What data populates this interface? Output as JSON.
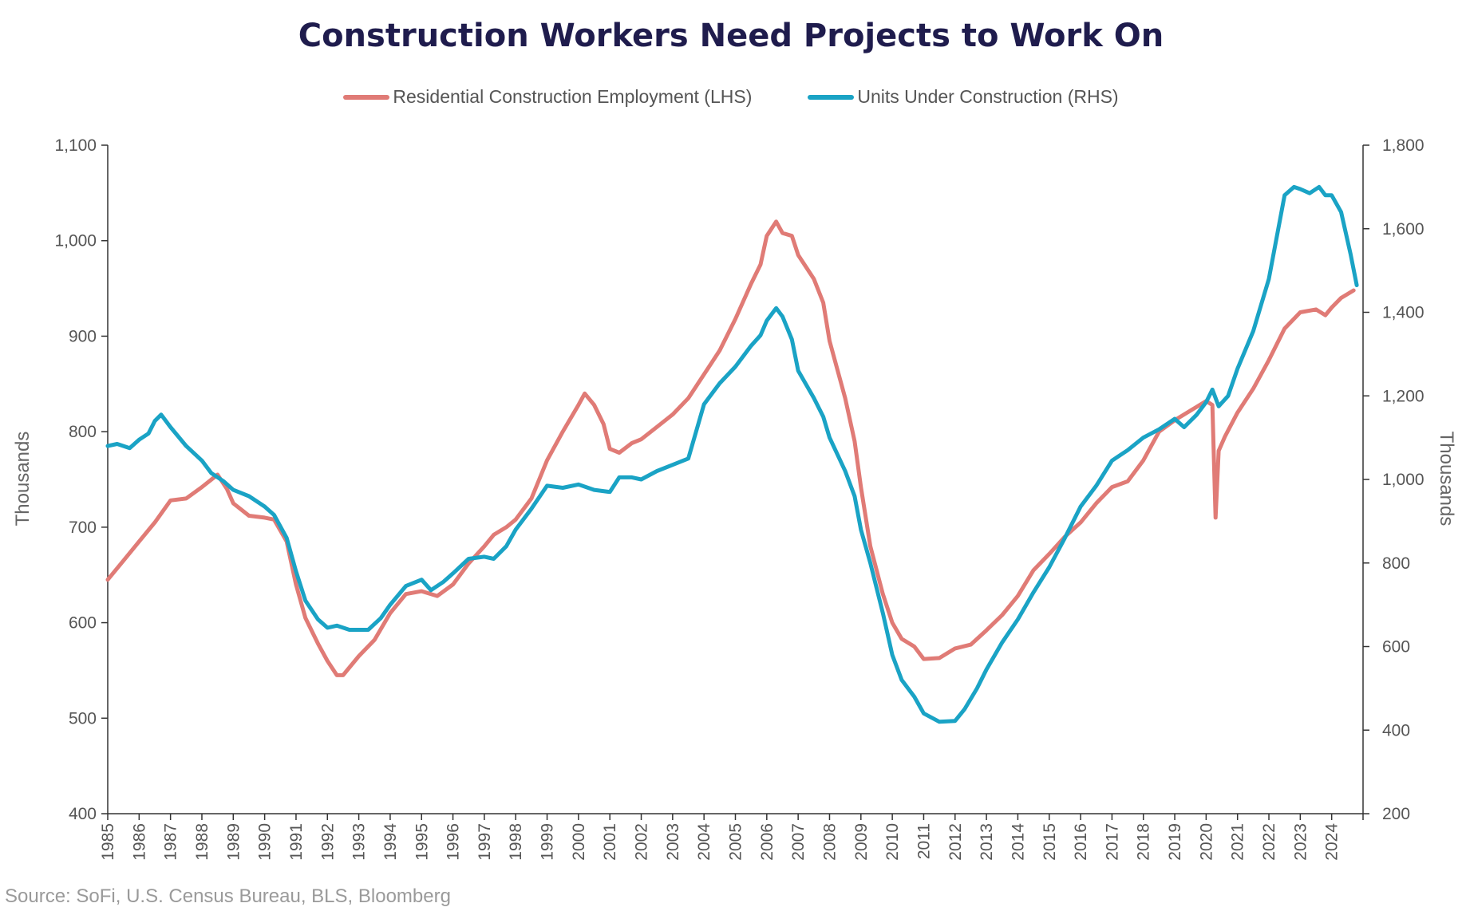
{
  "chart_data": {
    "type": "line",
    "title": "Construction Workers Need Projects to Work On",
    "source": "Source: SoFi, U.S. Census Bureau, BLS, Bloomberg",
    "y_left": {
      "label": "Thousands",
      "range": [
        400,
        1100
      ],
      "ticks": [
        "400",
        "500",
        "600",
        "700",
        "800",
        "900",
        "1,000",
        "1,100"
      ]
    },
    "y_right": {
      "label": "Thousands",
      "range": [
        200,
        1800
      ],
      "ticks": [
        "200",
        "400",
        "600",
        "800",
        "1,000",
        "1,200",
        "1,400",
        "1,600",
        "1,800"
      ]
    },
    "x": {
      "range": [
        1985,
        2025
      ],
      "ticks": [
        "1985",
        "1986",
        "1987",
        "1988",
        "1989",
        "1990",
        "1991",
        "1992",
        "1993",
        "1994",
        "1995",
        "1996",
        "1997",
        "1998",
        "1999",
        "2000",
        "2001",
        "2002",
        "2003",
        "2004",
        "2005",
        "2006",
        "2007",
        "2008",
        "2009",
        "2010",
        "2011",
        "2012",
        "2013",
        "2014",
        "2015",
        "2016",
        "2017",
        "2018",
        "2019",
        "2020",
        "2021",
        "2022",
        "2023",
        "2024"
      ]
    },
    "grid": false,
    "legend_position": "top-center",
    "series": [
      {
        "name": "Residential Construction Employment (LHS)",
        "axis": "left",
        "color": "#e07b76",
        "points": [
          [
            1985.0,
            645
          ],
          [
            1985.5,
            665
          ],
          [
            1986.0,
            685
          ],
          [
            1986.5,
            705
          ],
          [
            1987.0,
            728
          ],
          [
            1987.5,
            730
          ],
          [
            1988.0,
            742
          ],
          [
            1988.5,
            755
          ],
          [
            1988.8,
            740
          ],
          [
            1989.0,
            725
          ],
          [
            1989.5,
            712
          ],
          [
            1990.0,
            710
          ],
          [
            1990.3,
            708
          ],
          [
            1990.7,
            685
          ],
          [
            1991.0,
            640
          ],
          [
            1991.3,
            605
          ],
          [
            1991.7,
            578
          ],
          [
            1992.0,
            560
          ],
          [
            1992.3,
            545
          ],
          [
            1992.5,
            545
          ],
          [
            1993.0,
            565
          ],
          [
            1993.5,
            582
          ],
          [
            1994.0,
            610
          ],
          [
            1994.5,
            630
          ],
          [
            1995.0,
            633
          ],
          [
            1995.5,
            628
          ],
          [
            1996.0,
            640
          ],
          [
            1996.5,
            662
          ],
          [
            1997.0,
            680
          ],
          [
            1997.3,
            692
          ],
          [
            1997.7,
            700
          ],
          [
            1998.0,
            708
          ],
          [
            1998.5,
            730
          ],
          [
            1999.0,
            770
          ],
          [
            1999.5,
            800
          ],
          [
            2000.0,
            828
          ],
          [
            2000.2,
            840
          ],
          [
            2000.5,
            828
          ],
          [
            2000.8,
            808
          ],
          [
            2001.0,
            782
          ],
          [
            2001.3,
            778
          ],
          [
            2001.7,
            788
          ],
          [
            2002.0,
            792
          ],
          [
            2002.5,
            805
          ],
          [
            2003.0,
            818
          ],
          [
            2003.5,
            835
          ],
          [
            2004.0,
            860
          ],
          [
            2004.5,
            885
          ],
          [
            2005.0,
            918
          ],
          [
            2005.5,
            955
          ],
          [
            2005.8,
            975
          ],
          [
            2006.0,
            1005
          ],
          [
            2006.3,
            1020
          ],
          [
            2006.5,
            1008
          ],
          [
            2006.8,
            1005
          ],
          [
            2007.0,
            985
          ],
          [
            2007.5,
            960
          ],
          [
            2007.8,
            935
          ],
          [
            2008.0,
            895
          ],
          [
            2008.5,
            835
          ],
          [
            2008.8,
            790
          ],
          [
            2009.0,
            742
          ],
          [
            2009.3,
            680
          ],
          [
            2009.7,
            630
          ],
          [
            2010.0,
            600
          ],
          [
            2010.3,
            583
          ],
          [
            2010.7,
            575
          ],
          [
            2011.0,
            562
          ],
          [
            2011.5,
            563
          ],
          [
            2012.0,
            573
          ],
          [
            2012.5,
            577
          ],
          [
            2013.0,
            592
          ],
          [
            2013.5,
            608
          ],
          [
            2014.0,
            628
          ],
          [
            2014.5,
            655
          ],
          [
            2015.0,
            672
          ],
          [
            2015.5,
            690
          ],
          [
            2016.0,
            705
          ],
          [
            2016.5,
            725
          ],
          [
            2017.0,
            742
          ],
          [
            2017.5,
            748
          ],
          [
            2018.0,
            770
          ],
          [
            2018.5,
            800
          ],
          [
            2019.0,
            812
          ],
          [
            2019.5,
            822
          ],
          [
            2020.0,
            832
          ],
          [
            2020.2,
            828
          ],
          [
            2020.3,
            710
          ],
          [
            2020.4,
            780
          ],
          [
            2020.6,
            795
          ],
          [
            2021.0,
            820
          ],
          [
            2021.5,
            845
          ],
          [
            2022.0,
            875
          ],
          [
            2022.5,
            908
          ],
          [
            2023.0,
            925
          ],
          [
            2023.5,
            928
          ],
          [
            2023.8,
            922
          ],
          [
            2024.0,
            930
          ],
          [
            2024.3,
            940
          ],
          [
            2024.7,
            948
          ]
        ]
      },
      {
        "name": "Units Under Construction (RHS)",
        "axis": "right",
        "color": "#1aa3c5",
        "points": [
          [
            1985.0,
            1080
          ],
          [
            1985.3,
            1085
          ],
          [
            1985.7,
            1075
          ],
          [
            1986.0,
            1095
          ],
          [
            1986.3,
            1110
          ],
          [
            1986.5,
            1140
          ],
          [
            1986.7,
            1155
          ],
          [
            1987.0,
            1125
          ],
          [
            1987.5,
            1080
          ],
          [
            1988.0,
            1045
          ],
          [
            1988.3,
            1015
          ],
          [
            1988.7,
            995
          ],
          [
            1989.0,
            975
          ],
          [
            1989.5,
            960
          ],
          [
            1990.0,
            935
          ],
          [
            1990.3,
            915
          ],
          [
            1990.7,
            860
          ],
          [
            1991.0,
            780
          ],
          [
            1991.3,
            710
          ],
          [
            1991.7,
            665
          ],
          [
            1992.0,
            645
          ],
          [
            1992.3,
            650
          ],
          [
            1992.7,
            640
          ],
          [
            1993.0,
            640
          ],
          [
            1993.3,
            640
          ],
          [
            1993.7,
            668
          ],
          [
            1994.0,
            700
          ],
          [
            1994.5,
            745
          ],
          [
            1995.0,
            760
          ],
          [
            1995.3,
            735
          ],
          [
            1995.7,
            755
          ],
          [
            1996.0,
            775
          ],
          [
            1996.5,
            810
          ],
          [
            1997.0,
            815
          ],
          [
            1997.3,
            810
          ],
          [
            1997.7,
            840
          ],
          [
            1998.0,
            880
          ],
          [
            1998.5,
            930
          ],
          [
            1999.0,
            985
          ],
          [
            1999.5,
            980
          ],
          [
            2000.0,
            988
          ],
          [
            2000.5,
            975
          ],
          [
            2001.0,
            970
          ],
          [
            2001.3,
            1005
          ],
          [
            2001.7,
            1005
          ],
          [
            2002.0,
            1000
          ],
          [
            2002.5,
            1020
          ],
          [
            2003.0,
            1035
          ],
          [
            2003.5,
            1050
          ],
          [
            2004.0,
            1180
          ],
          [
            2004.5,
            1230
          ],
          [
            2005.0,
            1270
          ],
          [
            2005.5,
            1320
          ],
          [
            2005.8,
            1345
          ],
          [
            2006.0,
            1380
          ],
          [
            2006.3,
            1410
          ],
          [
            2006.5,
            1390
          ],
          [
            2006.8,
            1335
          ],
          [
            2007.0,
            1260
          ],
          [
            2007.5,
            1195
          ],
          [
            2007.8,
            1150
          ],
          [
            2008.0,
            1100
          ],
          [
            2008.5,
            1020
          ],
          [
            2008.8,
            960
          ],
          [
            2009.0,
            880
          ],
          [
            2009.3,
            800
          ],
          [
            2009.7,
            680
          ],
          [
            2010.0,
            580
          ],
          [
            2010.3,
            520
          ],
          [
            2010.7,
            480
          ],
          [
            2011.0,
            440
          ],
          [
            2011.5,
            420
          ],
          [
            2012.0,
            422
          ],
          [
            2012.3,
            450
          ],
          [
            2012.7,
            500
          ],
          [
            2013.0,
            545
          ],
          [
            2013.5,
            610
          ],
          [
            2014.0,
            665
          ],
          [
            2014.5,
            730
          ],
          [
            2015.0,
            790
          ],
          [
            2015.5,
            860
          ],
          [
            2016.0,
            935
          ],
          [
            2016.5,
            985
          ],
          [
            2017.0,
            1045
          ],
          [
            2017.5,
            1070
          ],
          [
            2018.0,
            1100
          ],
          [
            2018.5,
            1120
          ],
          [
            2019.0,
            1145
          ],
          [
            2019.3,
            1125
          ],
          [
            2019.7,
            1155
          ],
          [
            2020.0,
            1185
          ],
          [
            2020.2,
            1215
          ],
          [
            2020.4,
            1175
          ],
          [
            2020.7,
            1200
          ],
          [
            2021.0,
            1265
          ],
          [
            2021.5,
            1355
          ],
          [
            2022.0,
            1480
          ],
          [
            2022.3,
            1600
          ],
          [
            2022.5,
            1680
          ],
          [
            2022.8,
            1700
          ],
          [
            2023.0,
            1695
          ],
          [
            2023.3,
            1685
          ],
          [
            2023.6,
            1700
          ],
          [
            2023.8,
            1680
          ],
          [
            2024.0,
            1680
          ],
          [
            2024.3,
            1640
          ],
          [
            2024.6,
            1540
          ],
          [
            2024.8,
            1465
          ]
        ]
      }
    ]
  }
}
